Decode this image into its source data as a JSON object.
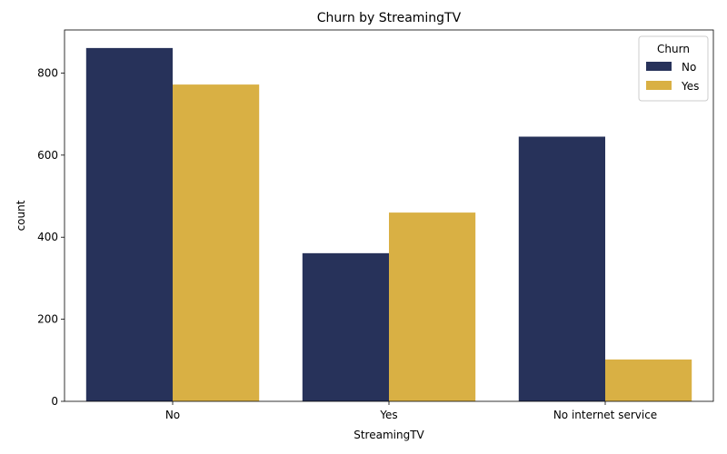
{
  "chart_data": {
    "type": "bar",
    "title": "Churn by StreamingTV",
    "xlabel": "StreamingTV",
    "ylabel": "count",
    "categories": [
      "No",
      "Yes",
      "No internet service"
    ],
    "series": [
      {
        "name": "No",
        "values": [
          861,
          361,
          645
        ],
        "color": "#27325a"
      },
      {
        "name": "Yes",
        "values": [
          772,
          460,
          102
        ],
        "color": "#d9b044"
      }
    ],
    "ylim": [
      0,
      905
    ],
    "yticks": [
      0,
      200,
      400,
      600,
      800
    ],
    "grid": false,
    "legend": {
      "title": "Churn",
      "placement": "top-right"
    }
  }
}
